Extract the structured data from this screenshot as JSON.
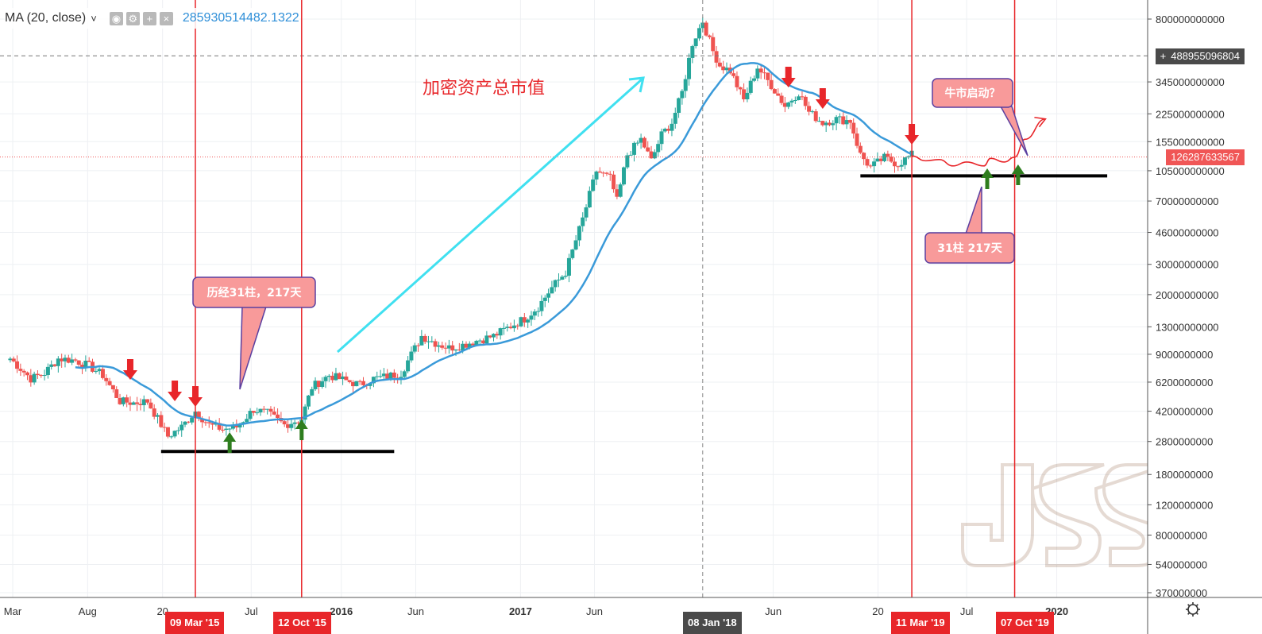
{
  "legend": {
    "indicator": "MA (20, close)",
    "chevron": "˅",
    "icons": [
      "eye-icon",
      "gear-icon",
      "plus-icon",
      "close-icon"
    ],
    "value": "285930514482.1322"
  },
  "price_tags": {
    "crosshair": "488955096804",
    "current": "126287633567",
    "plus": "+"
  },
  "annotations": {
    "title": "加密资产总市值",
    "callout_left": "历经31柱，217天",
    "callout_right_top": "牛市启动？",
    "callout_right_bottom": "31柱 217天"
  },
  "date_markers": {
    "m1": "09 Mar '15",
    "m2": "12 Oct '15",
    "m3": "08 Jan '18",
    "m4": "11 Mar '19",
    "m5": "07 Oct '19"
  },
  "colors": {
    "up": "#26a69a",
    "down": "#ef5350",
    "ma": "#3a9ad9",
    "marker_line": "#e8262a",
    "arrow_up": "#2e7d1e",
    "arrow_down": "#e8262a",
    "cyan_arrow": "#40e0f0"
  },
  "chart_data": {
    "type": "candlestick",
    "scale": "log",
    "y_ticks": [
      {
        "v": 800000000000,
        "label": "800000000000"
      },
      {
        "v": 345000000000,
        "label": "345000000000"
      },
      {
        "v": 225000000000,
        "label": "225000000000"
      },
      {
        "v": 155000000000,
        "label": "155000000000"
      },
      {
        "v": 105000000000,
        "label": "105000000000"
      },
      {
        "v": 70000000000,
        "label": "70000000000"
      },
      {
        "v": 46000000000,
        "label": "46000000000"
      },
      {
        "v": 30000000000,
        "label": "30000000000"
      },
      {
        "v": 20000000000,
        "label": "20000000000"
      },
      {
        "v": 13000000000,
        "label": "13000000000"
      },
      {
        "v": 9000000000,
        "label": "9000000000"
      },
      {
        "v": 6200000000,
        "label": "6200000000"
      },
      {
        "v": 4200000000,
        "label": "4200000000"
      },
      {
        "v": 2800000000,
        "label": "2800000000"
      },
      {
        "v": 1800000000,
        "label": "1800000000"
      },
      {
        "v": 1200000000,
        "label": "1200000000"
      },
      {
        "v": 800000000,
        "label": "800000000"
      },
      {
        "v": 540000000,
        "label": "540000000"
      },
      {
        "v": 370000000,
        "label": "370000000"
      }
    ],
    "x_ticks": [
      {
        "date": "2014-03",
        "label": "Mar"
      },
      {
        "date": "2014-08",
        "label": "Aug"
      },
      {
        "date": "2015-01",
        "label": "20"
      },
      {
        "date": "2015-07",
        "label": "Jul"
      },
      {
        "date": "2016-01",
        "label": "2016"
      },
      {
        "date": "2016-06",
        "label": "Jun"
      },
      {
        "date": "2017-01",
        "label": "2017"
      },
      {
        "date": "2017-06",
        "label": "Jun"
      },
      {
        "date": "2018-06",
        "label": "Jun"
      },
      {
        "date": "2019-01",
        "label": "20"
      },
      {
        "date": "2019-07",
        "label": "Jul"
      },
      {
        "date": "2020-01",
        "label": "2020"
      }
    ],
    "x_range": [
      "2014-02-20",
      "2020-07-01"
    ],
    "ma_period": 20,
    "weekly_close_anchors": [
      [
        "2014-02-24",
        8500000000
      ],
      [
        "2014-04-07",
        6500000000
      ],
      [
        "2014-05-05",
        7000000000
      ],
      [
        "2014-06-02",
        8500000000
      ],
      [
        "2014-07-07",
        8300000000
      ],
      [
        "2014-08-04",
        7700000000
      ],
      [
        "2014-09-01",
        6800000000
      ],
      [
        "2014-10-06",
        4800000000
      ],
      [
        "2014-11-03",
        4700000000
      ],
      [
        "2014-12-01",
        4800000000
      ],
      [
        "2015-01-12",
        3000000000
      ],
      [
        "2015-02-09",
        3400000000
      ],
      [
        "2015-03-09",
        4200000000
      ],
      [
        "2015-04-06",
        3500000000
      ],
      [
        "2015-05-04",
        3300000000
      ],
      [
        "2015-06-01",
        3400000000
      ],
      [
        "2015-07-06",
        4300000000
      ],
      [
        "2015-08-03",
        4100000000
      ],
      [
        "2015-09-07",
        3500000000
      ],
      [
        "2015-10-12",
        3800000000
      ],
      [
        "2015-11-02",
        5800000000
      ],
      [
        "2015-12-07",
        6800000000
      ],
      [
        "2016-01-11",
        6300000000
      ],
      [
        "2016-02-08",
        6000000000
      ],
      [
        "2016-03-07",
        6500000000
      ],
      [
        "2016-04-04",
        6700000000
      ],
      [
        "2016-05-02",
        7000000000
      ],
      [
        "2016-06-13",
        11500000000
      ],
      [
        "2016-07-11",
        10500000000
      ],
      [
        "2016-08-08",
        9800000000
      ],
      [
        "2016-09-05",
        10200000000
      ],
      [
        "2016-10-03",
        10800000000
      ],
      [
        "2016-11-07",
        11500000000
      ],
      [
        "2016-12-05",
        12800000000
      ],
      [
        "2017-01-09",
        14500000000
      ],
      [
        "2017-02-06",
        17000000000
      ],
      [
        "2017-03-06",
        22000000000
      ],
      [
        "2017-04-03",
        27000000000
      ],
      [
        "2017-05-08",
        55000000000
      ],
      [
        "2017-06-05",
        105000000000
      ],
      [
        "2017-07-03",
        95000000000
      ],
      [
        "2017-07-17",
        70000000000
      ],
      [
        "2017-08-07",
        130000000000
      ],
      [
        "2017-09-04",
        160000000000
      ],
      [
        "2017-09-25",
        120000000000
      ],
      [
        "2017-10-16",
        170000000000
      ],
      [
        "2017-11-06",
        200000000000
      ],
      [
        "2017-11-27",
        300000000000
      ],
      [
        "2017-12-18",
        580000000000
      ],
      [
        "2018-01-08",
        780000000000
      ],
      [
        "2018-01-29",
        520000000000
      ],
      [
        "2018-02-12",
        430000000000
      ],
      [
        "2018-03-05",
        400000000000
      ],
      [
        "2018-04-02",
        270000000000
      ],
      [
        "2018-04-30",
        420000000000
      ],
      [
        "2018-05-28",
        330000000000
      ],
      [
        "2018-06-25",
        250000000000
      ],
      [
        "2018-07-23",
        300000000000
      ],
      [
        "2018-08-13",
        230000000000
      ],
      [
        "2018-09-10",
        200000000000
      ],
      [
        "2018-10-08",
        210000000000
      ],
      [
        "2018-11-05",
        205000000000
      ],
      [
        "2018-11-26",
        130000000000
      ],
      [
        "2018-12-17",
        110000000000
      ],
      [
        "2019-01-14",
        125000000000
      ],
      [
        "2019-02-11",
        115000000000
      ],
      [
        "2019-03-11",
        130000000000
      ]
    ],
    "projection": [
      [
        "2019-03-11",
        128000000000
      ],
      [
        "2019-04-08",
        120000000000
      ],
      [
        "2019-05-06",
        122000000000
      ],
      [
        "2019-06-03",
        112000000000
      ],
      [
        "2019-07-01",
        118000000000
      ],
      [
        "2019-08-05",
        112000000000
      ],
      [
        "2019-08-19",
        124000000000
      ],
      [
        "2019-09-16",
        118000000000
      ],
      [
        "2019-10-07",
        126000000000
      ],
      [
        "2019-10-28",
        160000000000
      ],
      [
        "2019-12-09",
        210000000000
      ]
    ],
    "support_lines": [
      {
        "from": "2014-12-29",
        "to": "2016-04-18",
        "v": 2450000000
      },
      {
        "from": "2018-11-26",
        "to": "2020-04-13",
        "v": 98000000000
      }
    ],
    "up_arrows": [
      "2015-05-18",
      "2015-10-12",
      "2019-08-12",
      "2019-10-14"
    ],
    "down_arrows": [
      "2014-10-27",
      "2015-01-26",
      "2015-03-09",
      "2018-07-02",
      "2018-09-10",
      "2019-03-11"
    ],
    "current_price": 126287633567,
    "crosshair_price": 488955096804
  }
}
